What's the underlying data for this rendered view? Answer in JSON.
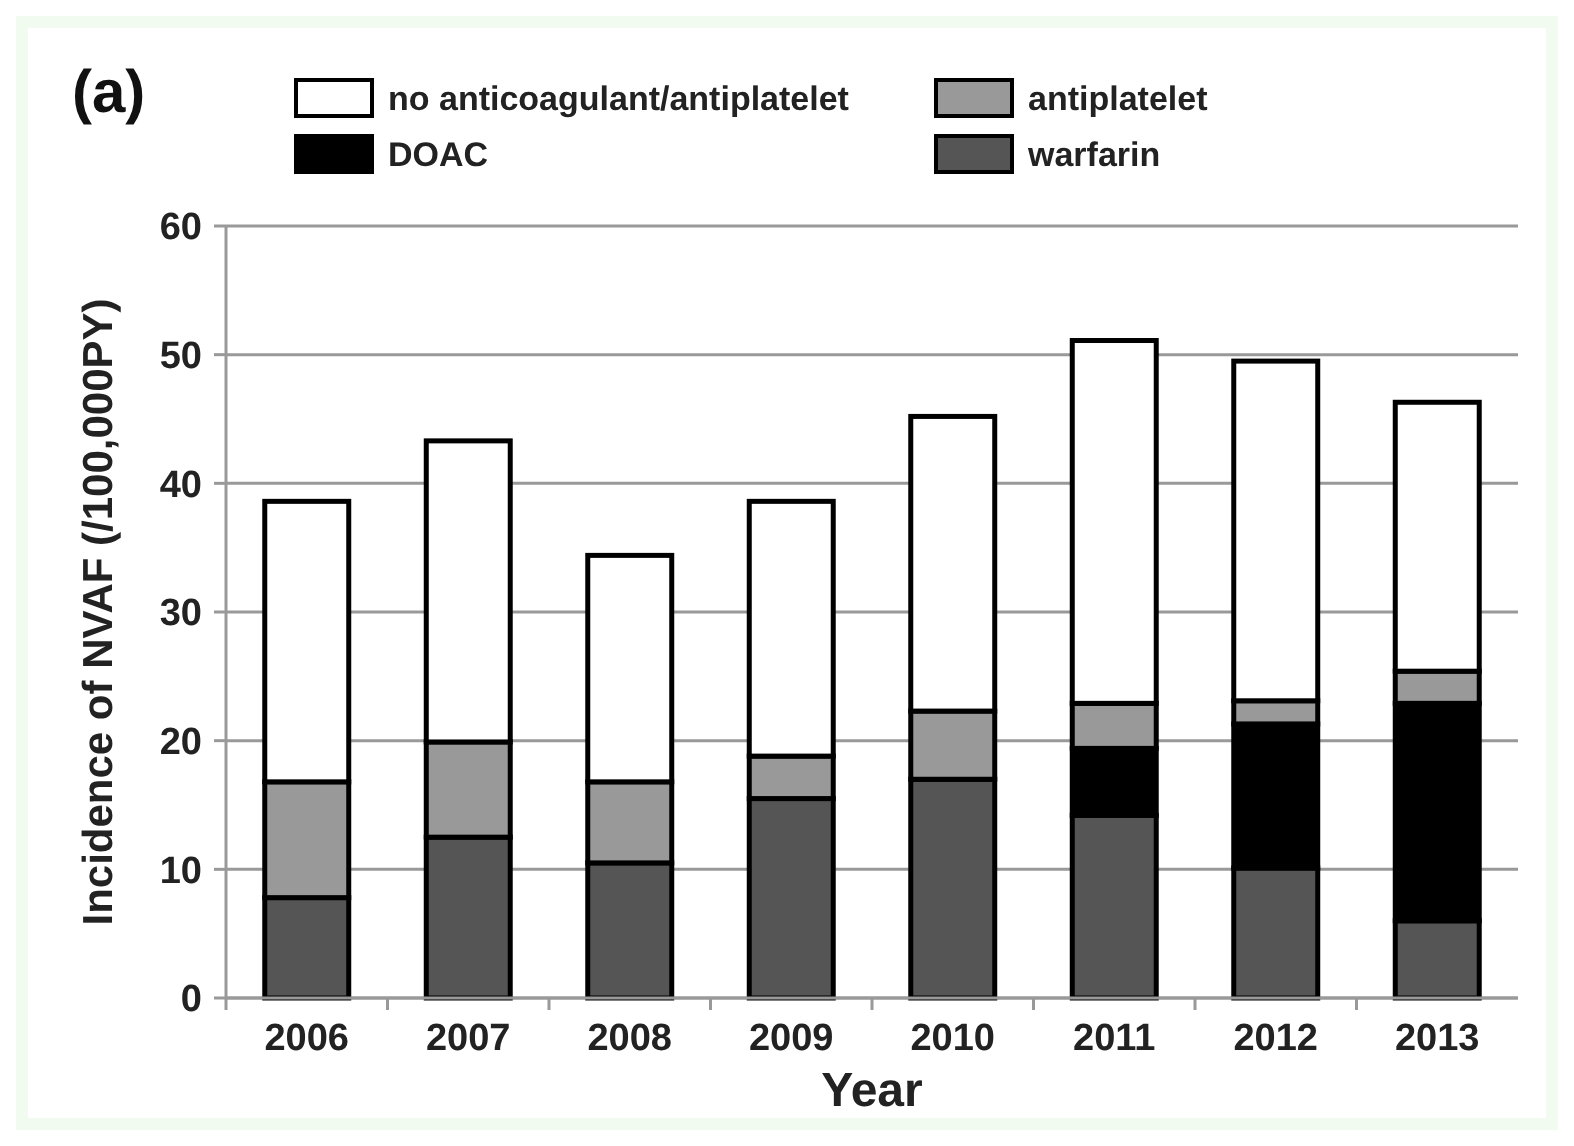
{
  "chart_data": {
    "type": "bar",
    "title": "(a)",
    "xlabel": "Year",
    "ylabel": "Incidence of NVAF (/100,000PY)",
    "categories": [
      "2006",
      "2007",
      "2008",
      "2009",
      "2010",
      "2011",
      "2012",
      "2013"
    ],
    "stacked": true,
    "series": [
      {
        "name": "warfarin",
        "color": "#555555",
        "values": [
          7.8,
          12.5,
          10.5,
          15.5,
          17.0,
          14.2,
          10.1,
          6.0
        ]
      },
      {
        "name": "DOAC",
        "color": "#000000",
        "values": [
          0,
          0,
          0,
          0,
          0,
          5.2,
          11.2,
          16.9
        ]
      },
      {
        "name": "antiplatelet",
        "color": "#999999",
        "values": [
          9.0,
          7.4,
          6.3,
          3.3,
          5.3,
          3.5,
          1.8,
          2.5
        ]
      },
      {
        "name": "no anticoagulant/antiplatelet",
        "color": "#ffffff",
        "values": [
          21.8,
          23.4,
          17.6,
          19.8,
          22.9,
          28.2,
          26.4,
          20.9
        ]
      }
    ],
    "ylim": [
      0,
      60
    ],
    "yticks": [
      0,
      10,
      20,
      30,
      40,
      50,
      60
    ],
    "grid": "y",
    "legend": "top"
  }
}
